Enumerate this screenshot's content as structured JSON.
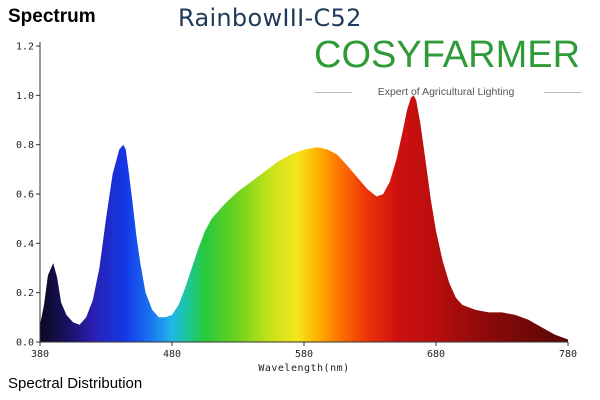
{
  "header": {
    "title": "Spectrum",
    "model": "RainbowIII-C52",
    "brand": "COSYFARMER",
    "brand_tagline": "Expert of Agricultural Lighting"
  },
  "caption": "Spectral Distribution",
  "colors": {
    "brand_green": "#2f9a38",
    "brand_sun": "#f2a91e",
    "model_text": "#1f3a5a"
  },
  "chart_data": {
    "type": "area",
    "xlabel": "Wavelength(nm)",
    "ylabel": "",
    "xlim": [
      380,
      780
    ],
    "ylim": [
      0,
      1.2
    ],
    "x_ticks": [
      380,
      480,
      580,
      680,
      780
    ],
    "y_ticks": [
      "0.0",
      "0.2",
      "0.4",
      "0.6",
      "0.8",
      "1.0",
      "1.2"
    ],
    "grid": false,
    "fill": "wavelength-colored",
    "x": [
      380,
      383,
      386,
      390,
      393,
      396,
      400,
      405,
      410,
      415,
      420,
      425,
      430,
      435,
      440,
      443,
      445,
      447,
      450,
      453,
      456,
      460,
      465,
      470,
      475,
      480,
      485,
      490,
      495,
      500,
      505,
      510,
      520,
      530,
      540,
      550,
      560,
      570,
      580,
      590,
      598,
      605,
      612,
      620,
      628,
      635,
      640,
      645,
      650,
      655,
      658,
      661,
      663,
      665,
      668,
      672,
      676,
      680,
      685,
      690,
      695,
      700,
      710,
      720,
      730,
      740,
      750,
      760,
      770,
      780
    ],
    "values": [
      0.07,
      0.15,
      0.27,
      0.32,
      0.26,
      0.16,
      0.11,
      0.08,
      0.07,
      0.1,
      0.17,
      0.3,
      0.5,
      0.68,
      0.78,
      0.8,
      0.78,
      0.7,
      0.57,
      0.43,
      0.32,
      0.2,
      0.13,
      0.1,
      0.1,
      0.11,
      0.15,
      0.22,
      0.3,
      0.38,
      0.45,
      0.5,
      0.56,
      0.61,
      0.65,
      0.69,
      0.73,
      0.76,
      0.78,
      0.79,
      0.78,
      0.76,
      0.72,
      0.67,
      0.62,
      0.59,
      0.6,
      0.65,
      0.74,
      0.86,
      0.94,
      0.99,
      1.0,
      0.98,
      0.89,
      0.74,
      0.58,
      0.45,
      0.33,
      0.24,
      0.18,
      0.15,
      0.13,
      0.12,
      0.12,
      0.11,
      0.09,
      0.06,
      0.03,
      0.01
    ]
  }
}
